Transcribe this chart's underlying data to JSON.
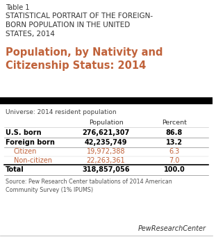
{
  "table_label": "Table 1",
  "supertitle": "STATISTICAL PORTRAIT OF THE FOREIGN-\nBORN POPULATION IN THE UNITED\nSTATES, 2014",
  "title": "Population, by Nativity and\nCitizenship Status: 2014",
  "universe": "Universe: 2014 resident population",
  "col_headers": [
    "",
    "Population",
    "Percent"
  ],
  "rows": [
    {
      "label": "U.S. born",
      "population": "276,621,307",
      "percent": "86.8",
      "indent": 0,
      "bold": true,
      "color": "#000000"
    },
    {
      "label": "Foreign born",
      "population": "42,235,749",
      "percent": "13.2",
      "indent": 0,
      "bold": true,
      "color": "#000000"
    },
    {
      "label": "Citizen",
      "population": "19,972,388",
      "percent": "6.3",
      "indent": 1,
      "bold": false,
      "color": "#c0623a"
    },
    {
      "label": "Non-citizen",
      "population": "22,263,361",
      "percent": "7.0",
      "indent": 1,
      "bold": false,
      "color": "#c0623a"
    },
    {
      "label": "Total",
      "population": "318,857,056",
      "percent": "100.0",
      "indent": 0,
      "bold": true,
      "color": "#000000"
    }
  ],
  "source": "Source: Pew Research Center tabulations of 2014 American\nCommunity Survey (1% IPUMS)",
  "pew_logo": "PewResearchCenter",
  "bg_color": "#ffffff",
  "header_bg": "#000000",
  "title_color": "#c0623a",
  "supertitle_color": "#333333",
  "table_label_color": "#333333",
  "source_color": "#555555",
  "logo_color": "#333333"
}
